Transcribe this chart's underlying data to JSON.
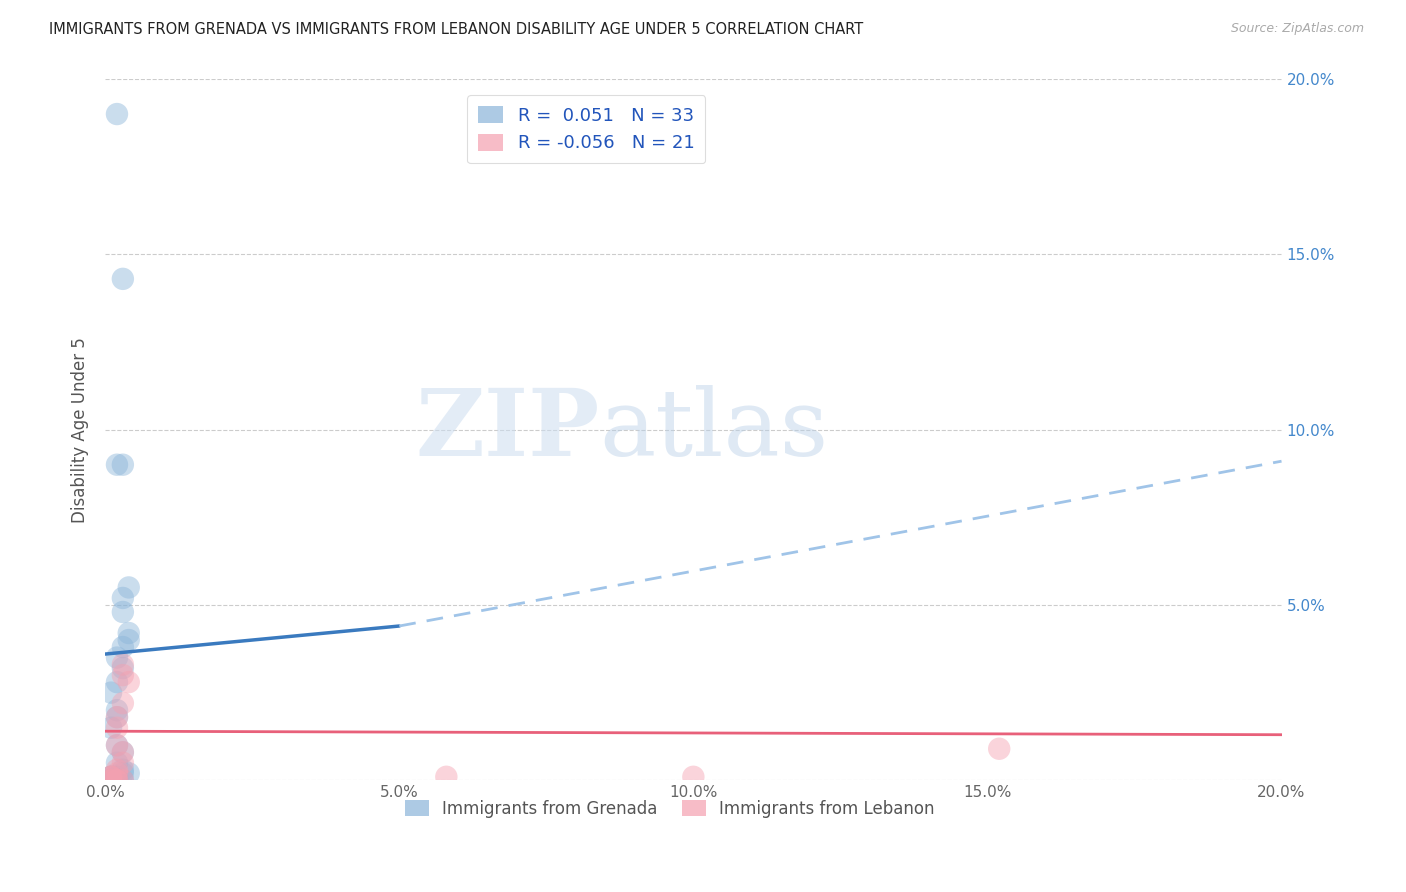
{
  "title": "IMMIGRANTS FROM GRENADA VS IMMIGRANTS FROM LEBANON DISABILITY AGE UNDER 5 CORRELATION CHART",
  "source": "Source: ZipAtlas.com",
  "ylabel": "Disability Age Under 5",
  "xlim": [
    0.0,
    0.2
  ],
  "ylim": [
    0.0,
    0.2
  ],
  "xticks": [
    0.0,
    0.05,
    0.1,
    0.15,
    0.2
  ],
  "yticks": [
    0.0,
    0.05,
    0.1,
    0.15,
    0.2
  ],
  "xtick_labels": [
    "0.0%",
    "5.0%",
    "10.0%",
    "15.0%",
    "20.0%"
  ],
  "right_ytick_labels": [
    "",
    "5.0%",
    "10.0%",
    "15.0%",
    "20.0%"
  ],
  "legend_labels": [
    "Immigrants from Grenada",
    "Immigrants from Lebanon"
  ],
  "r_grenada": 0.051,
  "n_grenada": 33,
  "r_lebanon": -0.056,
  "n_lebanon": 21,
  "grenada_color": "#8ab4d9",
  "lebanon_color": "#f4a0b0",
  "grenada_line_color": "#3a7abf",
  "lebanon_line_color": "#e8607a",
  "grenada_dash_color": "#a0c4e8",
  "background_color": "#ffffff",
  "grenada_x": [
    0.002,
    0.004,
    0.003,
    0.002,
    0.003,
    0.004,
    0.003,
    0.003,
    0.004,
    0.003,
    0.002,
    0.003,
    0.002,
    0.001,
    0.002,
    0.002,
    0.001,
    0.002,
    0.003,
    0.002,
    0.003,
    0.003,
    0.002,
    0.002,
    0.001,
    0.002,
    0.002,
    0.004,
    0.003,
    0.001,
    0.001,
    0.001,
    0.001
  ],
  "grenada_y": [
    0.19,
    0.04,
    0.143,
    0.09,
    0.09,
    0.055,
    0.052,
    0.048,
    0.042,
    0.038,
    0.035,
    0.032,
    0.028,
    0.025,
    0.02,
    0.018,
    0.015,
    0.01,
    0.008,
    0.005,
    0.003,
    0.002,
    0.001,
    0.0,
    0.0,
    0.0,
    0.001,
    0.002,
    0.0,
    0.0,
    0.001,
    0.001,
    0.0
  ],
  "lebanon_x": [
    0.003,
    0.004,
    0.003,
    0.002,
    0.002,
    0.003,
    0.002,
    0.003,
    0.003,
    0.002,
    0.002,
    0.001,
    0.002,
    0.002,
    0.001,
    0.001,
    0.001,
    0.1,
    0.152,
    0.058,
    0.003
  ],
  "lebanon_y": [
    0.033,
    0.028,
    0.022,
    0.018,
    0.015,
    0.03,
    0.01,
    0.008,
    0.005,
    0.003,
    0.002,
    0.001,
    0.0,
    0.0,
    0.001,
    0.0,
    0.0,
    0.001,
    0.009,
    0.001,
    0.0
  ],
  "grenada_line_x0": 0.0,
  "grenada_line_y0": 0.036,
  "grenada_line_x_solid_end": 0.05,
  "grenada_line_y_solid_end": 0.044,
  "grenada_line_x_dash_end": 0.2,
  "grenada_line_y_dash_end": 0.091,
  "lebanon_line_x0": 0.0,
  "lebanon_line_y0": 0.014,
  "lebanon_line_x1": 0.2,
  "lebanon_line_y1": 0.013
}
